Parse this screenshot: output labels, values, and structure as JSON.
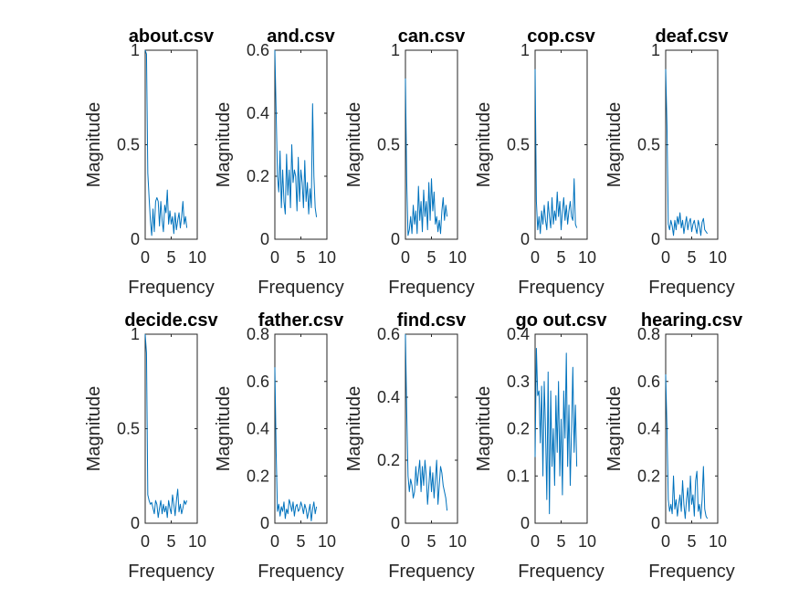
{
  "figure": {
    "background": "#ffffff",
    "axis_color": "#262626",
    "line_color": "#0072BD"
  },
  "chart_data": [
    {
      "type": "line",
      "title": "about.csv",
      "xlabel": "Frequency",
      "ylabel": "Magnitude",
      "xlim": [
        0,
        10
      ],
      "ylim": [
        0,
        1
      ],
      "xticks": [
        0,
        5,
        10
      ],
      "xtick_labels": [
        "0",
        "5",
        "10"
      ],
      "yticks": [
        0,
        0.5,
        1
      ],
      "ytick_labels": [
        "0",
        "0.5",
        "1"
      ],
      "grid": false,
      "legend": "none",
      "x": [
        0,
        0.25,
        0.5,
        0.75,
        1,
        1.25,
        1.5,
        1.75,
        2,
        2.25,
        2.5,
        2.75,
        3,
        3.25,
        3.5,
        3.75,
        4,
        4.25,
        4.5,
        4.75,
        5,
        5.25,
        5.5,
        5.75,
        6,
        6.25,
        6.5,
        6.75,
        7,
        7.25,
        7.5,
        7.75,
        8
      ],
      "y": [
        1.0,
        0.98,
        0.35,
        0.22,
        0.1,
        0.02,
        0.16,
        0.04,
        0.2,
        0.22,
        0.2,
        0.07,
        0.2,
        0.1,
        0.04,
        0.18,
        0.14,
        0.26,
        0.08,
        0.15,
        0.08,
        0.12,
        0.03,
        0.14,
        0.05,
        0.1,
        0.14,
        0.06,
        0.12,
        0.2,
        0.08,
        0.12,
        0.06
      ]
    },
    {
      "type": "line",
      "title": "and.csv",
      "xlabel": "Frequency",
      "ylabel": "Magnitude",
      "xlim": [
        0,
        10
      ],
      "ylim": [
        0,
        0.6
      ],
      "xticks": [
        0,
        5,
        10
      ],
      "xtick_labels": [
        "0",
        "5",
        "10"
      ],
      "yticks": [
        0,
        0.2,
        0.4,
        0.6
      ],
      "ytick_labels": [
        "0",
        "0.2",
        "0.4",
        "0.6"
      ],
      "grid": false,
      "legend": "none",
      "x": [
        0,
        0.25,
        0.5,
        0.75,
        1,
        1.25,
        1.5,
        1.75,
        2,
        2.25,
        2.5,
        2.75,
        3,
        3.25,
        3.5,
        3.75,
        4,
        4.25,
        4.5,
        4.75,
        5,
        5.25,
        5.5,
        5.75,
        6,
        6.25,
        6.5,
        6.75,
        7,
        7.25,
        7.5,
        7.75,
        8
      ],
      "y": [
        0.6,
        0.4,
        0.2,
        0.15,
        0.28,
        0.1,
        0.22,
        0.12,
        0.08,
        0.27,
        0.14,
        0.22,
        0.1,
        0.3,
        0.18,
        0.22,
        0.2,
        0.09,
        0.26,
        0.12,
        0.22,
        0.18,
        0.1,
        0.25,
        0.12,
        0.18,
        0.08,
        0.16,
        0.1,
        0.43,
        0.2,
        0.1,
        0.07
      ]
    },
    {
      "type": "line",
      "title": "can.csv",
      "xlabel": "Frequency",
      "ylabel": "Magnitude",
      "xlim": [
        0,
        10
      ],
      "ylim": [
        0,
        1
      ],
      "xticks": [
        0,
        5,
        10
      ],
      "xtick_labels": [
        "0",
        "5",
        "10"
      ],
      "yticks": [
        0,
        0.5,
        1
      ],
      "ytick_labels": [
        "0",
        "0.5",
        "1"
      ],
      "grid": false,
      "legend": "none",
      "x": [
        0,
        0.25,
        0.5,
        0.75,
        1,
        1.25,
        1.5,
        1.75,
        2,
        2.25,
        2.5,
        2.75,
        3,
        3.25,
        3.5,
        3.75,
        4,
        4.25,
        4.5,
        4.75,
        5,
        5.25,
        5.5,
        5.75,
        6,
        6.25,
        6.5,
        6.75,
        7,
        7.25,
        7.5,
        7.75,
        8
      ],
      "y": [
        0.85,
        0.3,
        0.02,
        0.05,
        0.12,
        0.03,
        0.18,
        0.08,
        0.15,
        0.03,
        0.28,
        0.1,
        0.2,
        0.04,
        0.26,
        0.12,
        0.2,
        0.05,
        0.3,
        0.1,
        0.32,
        0.15,
        0.25,
        0.08,
        0.12,
        0.04,
        0.1,
        0.03,
        0.15,
        0.22,
        0.1,
        0.18,
        0.12
      ]
    },
    {
      "type": "line",
      "title": "cop.csv",
      "xlabel": "Frequency",
      "ylabel": "Magnitude",
      "xlim": [
        0,
        10
      ],
      "ylim": [
        0,
        1
      ],
      "xticks": [
        0,
        5,
        10
      ],
      "xtick_labels": [
        "0",
        "5",
        "10"
      ],
      "yticks": [
        0,
        0.5,
        1
      ],
      "ytick_labels": [
        "0",
        "0.5",
        "1"
      ],
      "grid": false,
      "legend": "none",
      "x": [
        0,
        0.25,
        0.5,
        0.75,
        1,
        1.25,
        1.5,
        1.75,
        2,
        2.25,
        2.5,
        2.75,
        3,
        3.25,
        3.5,
        3.75,
        4,
        4.25,
        4.5,
        4.75,
        5,
        5.25,
        5.5,
        5.75,
        6,
        6.25,
        6.5,
        6.75,
        7,
        7.25,
        7.5,
        7.75,
        8
      ],
      "y": [
        0.9,
        0.2,
        0.05,
        0.12,
        0.03,
        0.15,
        0.08,
        0.18,
        0.1,
        0.05,
        0.2,
        0.12,
        0.06,
        0.22,
        0.08,
        0.15,
        0.1,
        0.25,
        0.12,
        0.2,
        0.05,
        0.15,
        0.22,
        0.1,
        0.18,
        0.08,
        0.15,
        0.2,
        0.12,
        0.1,
        0.32,
        0.08,
        0.06
      ]
    },
    {
      "type": "line",
      "title": "deaf.csv",
      "xlabel": "Frequency",
      "ylabel": "Magnitude",
      "xlim": [
        0,
        10
      ],
      "ylim": [
        0,
        1
      ],
      "xticks": [
        0,
        5,
        10
      ],
      "xtick_labels": [
        "0",
        "5",
        "10"
      ],
      "yticks": [
        0,
        0.5,
        1
      ],
      "ytick_labels": [
        "0",
        "0.5",
        "1"
      ],
      "grid": false,
      "legend": "none",
      "x": [
        0,
        0.25,
        0.5,
        0.75,
        1,
        1.25,
        1.5,
        1.75,
        2,
        2.25,
        2.5,
        2.75,
        3,
        3.25,
        3.5,
        3.75,
        4,
        4.25,
        4.5,
        4.75,
        5,
        5.25,
        5.5,
        5.75,
        6,
        6.25,
        6.5,
        6.75,
        7,
        7.25,
        7.5,
        7.75,
        8
      ],
      "y": [
        0.9,
        0.6,
        0.08,
        0.05,
        0.1,
        0.07,
        0.02,
        0.1,
        0.05,
        0.12,
        0.08,
        0.14,
        0.06,
        0.1,
        0.03,
        0.08,
        0.12,
        0.05,
        0.09,
        0.11,
        0.04,
        0.08,
        0.1,
        0.06,
        0.03,
        0.1,
        0.07,
        0.02,
        0.09,
        0.11,
        0.05,
        0.04,
        0.03
      ]
    },
    {
      "type": "line",
      "title": "decide.csv",
      "xlabel": "Frequency",
      "ylabel": "Magnitude",
      "xlim": [
        0,
        10
      ],
      "ylim": [
        0,
        1
      ],
      "xticks": [
        0,
        5,
        10
      ],
      "xtick_labels": [
        "0",
        "5",
        "10"
      ],
      "yticks": [
        0,
        0.5,
        1
      ],
      "ytick_labels": [
        "0",
        "0.5",
        "1"
      ],
      "grid": false,
      "legend": "none",
      "x": [
        0,
        0.25,
        0.5,
        0.75,
        1,
        1.25,
        1.5,
        1.75,
        2,
        2.25,
        2.5,
        2.75,
        3,
        3.25,
        3.5,
        3.75,
        4,
        4.25,
        4.5,
        4.75,
        5,
        5.25,
        5.5,
        5.75,
        6,
        6.25,
        6.5,
        6.75,
        7,
        7.25,
        7.5,
        7.75,
        8
      ],
      "y": [
        1.0,
        0.9,
        0.15,
        0.12,
        0.1,
        0.11,
        0.08,
        0.05,
        0.12,
        0.1,
        0.03,
        0.08,
        0.12,
        0.05,
        0.1,
        0.06,
        0.09,
        0.03,
        0.12,
        0.08,
        0.05,
        0.15,
        0.1,
        0.04,
        0.12,
        0.18,
        0.06,
        0.1,
        0.05,
        0.08,
        0.12,
        0.1,
        0.12
      ]
    },
    {
      "type": "line",
      "title": "father.csv",
      "xlabel": "Frequency",
      "ylabel": "Magnitude",
      "xlim": [
        0,
        10
      ],
      "ylim": [
        0,
        0.8
      ],
      "xticks": [
        0,
        5,
        10
      ],
      "xtick_labels": [
        "0",
        "5",
        "10"
      ],
      "yticks": [
        0,
        0.2,
        0.4,
        0.6,
        0.8
      ],
      "ytick_labels": [
        "0",
        "0.2",
        "0.4",
        "0.6",
        "0.8"
      ],
      "grid": false,
      "legend": "none",
      "x": [
        0,
        0.25,
        0.5,
        0.75,
        1,
        1.25,
        1.5,
        1.75,
        2,
        2.25,
        2.5,
        2.75,
        3,
        3.25,
        3.5,
        3.75,
        4,
        4.25,
        4.5,
        4.75,
        5,
        5.25,
        5.5,
        5.75,
        6,
        6.25,
        6.5,
        6.75,
        7,
        7.25,
        7.5,
        7.75,
        8
      ],
      "y": [
        0.66,
        0.3,
        0.05,
        0.08,
        0.03,
        0.07,
        0.05,
        0.09,
        0.02,
        0.06,
        0.04,
        0.1,
        0.08,
        0.05,
        0.09,
        0.03,
        0.07,
        0.08,
        0.05,
        0.06,
        0.09,
        0.07,
        0.04,
        0.08,
        0.06,
        0.02,
        0.05,
        0.08,
        0.01,
        0.06,
        0.09,
        0.04,
        0.07
      ]
    },
    {
      "type": "line",
      "title": "find.csv",
      "xlabel": "Frequency",
      "ylabel": "Magnitude",
      "xlim": [
        0,
        10
      ],
      "ylim": [
        0,
        0.6
      ],
      "xticks": [
        0,
        5,
        10
      ],
      "xtick_labels": [
        "0",
        "5",
        "10"
      ],
      "yticks": [
        0,
        0.2,
        0.4,
        0.6
      ],
      "ytick_labels": [
        "0",
        "0.2",
        "0.4",
        "0.6"
      ],
      "grid": false,
      "legend": "none",
      "x": [
        0,
        0.25,
        0.5,
        0.75,
        1,
        1.25,
        1.5,
        1.75,
        2,
        2.25,
        2.5,
        2.75,
        3,
        3.25,
        3.5,
        3.75,
        4,
        4.25,
        4.5,
        4.75,
        5,
        5.25,
        5.5,
        5.75,
        6,
        6.25,
        6.5,
        6.75,
        7,
        7.25,
        7.5,
        7.75,
        8
      ],
      "y": [
        0.6,
        0.35,
        0.15,
        0.1,
        0.14,
        0.12,
        0.08,
        0.1,
        0.18,
        0.12,
        0.16,
        0.2,
        0.1,
        0.18,
        0.12,
        0.2,
        0.15,
        0.06,
        0.12,
        0.18,
        0.1,
        0.16,
        0.08,
        0.14,
        0.2,
        0.06,
        0.12,
        0.18,
        0.16,
        0.12,
        0.1,
        0.08,
        0.04
      ]
    },
    {
      "type": "line",
      "title": "go out.csv",
      "xlabel": "Frequency",
      "ylabel": "Magnitude",
      "xlim": [
        0,
        10
      ],
      "ylim": [
        0,
        0.4
      ],
      "xticks": [
        0,
        5,
        10
      ],
      "xtick_labels": [
        "0",
        "5",
        "10"
      ],
      "yticks": [
        0,
        0.1,
        0.2,
        0.3,
        0.4
      ],
      "ytick_labels": [
        "0",
        "0.1",
        "0.2",
        "0.3",
        "0.4"
      ],
      "grid": false,
      "legend": "none",
      "x": [
        0,
        0.25,
        0.5,
        0.75,
        1,
        1.25,
        1.5,
        1.75,
        2,
        2.25,
        2.5,
        2.75,
        3,
        3.25,
        3.5,
        3.75,
        4,
        4.25,
        4.5,
        4.75,
        5,
        5.25,
        5.5,
        5.75,
        6,
        6.25,
        6.5,
        6.75,
        7,
        7.25,
        7.5,
        7.75,
        8
      ],
      "y": [
        0.14,
        0.37,
        0.27,
        0.28,
        0.17,
        0.29,
        0.1,
        0.3,
        0.2,
        0.05,
        0.32,
        0.02,
        0.28,
        0.12,
        0.2,
        0.08,
        0.27,
        0.15,
        0.3,
        0.1,
        0.22,
        0.06,
        0.28,
        0.18,
        0.36,
        0.12,
        0.25,
        0.08,
        0.2,
        0.33,
        0.15,
        0.25,
        0.12
      ]
    },
    {
      "type": "line",
      "title": "hearing.csv",
      "xlabel": "Frequency",
      "ylabel": "Magnitude",
      "xlim": [
        0,
        10
      ],
      "ylim": [
        0,
        0.8
      ],
      "xticks": [
        0,
        5,
        10
      ],
      "xtick_labels": [
        "0",
        "5",
        "10"
      ],
      "yticks": [
        0,
        0.2,
        0.4,
        0.6,
        0.8
      ],
      "ytick_labels": [
        "0",
        "0.2",
        "0.4",
        "0.6",
        "0.8"
      ],
      "grid": false,
      "legend": "none",
      "x": [
        0,
        0.25,
        0.5,
        0.75,
        1,
        1.25,
        1.5,
        1.75,
        2,
        2.25,
        2.5,
        2.75,
        3,
        3.25,
        3.5,
        3.75,
        4,
        4.25,
        4.5,
        4.75,
        5,
        5.25,
        5.5,
        5.75,
        6,
        6.25,
        6.5,
        6.75,
        7,
        7.25,
        7.5,
        7.75,
        8
      ],
      "y": [
        0.63,
        0.4,
        0.1,
        0.05,
        0.08,
        0.04,
        0.2,
        0.06,
        0.1,
        0.03,
        0.08,
        0.12,
        0.05,
        0.18,
        0.08,
        0.02,
        0.1,
        0.15,
        0.05,
        0.2,
        0.08,
        0.12,
        0.03,
        0.18,
        0.22,
        0.05,
        0.08,
        0.02,
        0.1,
        0.24,
        0.06,
        0.03,
        0.02
      ]
    }
  ]
}
